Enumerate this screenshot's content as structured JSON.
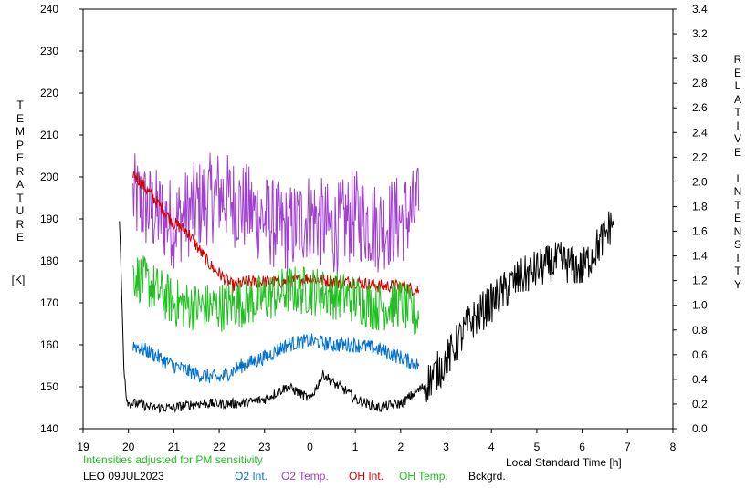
{
  "chart_data": {
    "type": "line",
    "left_axis": {
      "label": "TEMPERATURE",
      "unit": "[K]",
      "range": [
        140,
        240
      ],
      "ticks": [
        "140",
        "150",
        "160",
        "170",
        "180",
        "190",
        "200",
        "210",
        "220",
        "230",
        "240"
      ]
    },
    "right_axis": {
      "label": "RELATIVE INTENSITY",
      "range": [
        0.0,
        3.4
      ],
      "ticks": [
        "0.0",
        "0.2",
        "0.4",
        "0.6",
        "0.8",
        "1.0",
        "1.2",
        "1.4",
        "1.6",
        "1.8",
        "2.0",
        "2.2",
        "2.4",
        "2.6",
        "2.8",
        "3.0",
        "3.2",
        "3.4"
      ]
    },
    "x_axis": {
      "label": "Local Standard Time [h]",
      "ticks": [
        "19",
        "20",
        "21",
        "22",
        "23",
        "0",
        "1",
        "2",
        "3",
        "4",
        "5",
        "6",
        "7",
        "8"
      ]
    },
    "note": "Intensities adjusted for PM sensitivity",
    "station": "LEO 09JUL2023",
    "legend": [
      {
        "name": "O2 Int.",
        "color": "#0070d0"
      },
      {
        "name": "O2 Temp.",
        "color": "#a040d0"
      },
      {
        "name": "OH Int.",
        "color": "#d00000"
      },
      {
        "name": "OH Temp.",
        "color": "#20c020"
      },
      {
        "name": "Bckgrd.",
        "color": "#000000"
      }
    ],
    "series": [
      {
        "name": "O2 Temp.",
        "axis": "left",
        "x": [
          20.1,
          20.5,
          21.0,
          21.5,
          22.0,
          22.5,
          23.0,
          23.5,
          24.0,
          24.5,
          25.0,
          25.5,
          26.0,
          26.4
        ],
        "y": [
          195,
          192,
          189,
          193,
          196,
          193,
          190,
          187,
          191,
          187,
          191,
          188,
          190,
          192
        ]
      },
      {
        "name": "OH Int.",
        "axis": "left",
        "x": [
          20.1,
          20.4,
          20.7,
          21.0,
          21.3,
          21.6,
          21.8,
          22.0,
          22.3,
          22.6,
          23.0,
          23.5,
          24.0,
          24.5,
          25.0,
          25.5,
          26.0,
          26.4
        ],
        "y": [
          201,
          197,
          193,
          189,
          187,
          182,
          179,
          177,
          174,
          175,
          175,
          175,
          176,
          175,
          175,
          174,
          174,
          173
        ]
      },
      {
        "name": "OH Temp.",
        "axis": "left",
        "x": [
          20.1,
          20.5,
          21.0,
          21.5,
          22.0,
          22.5,
          23.0,
          23.5,
          24.0,
          24.5,
          25.0,
          25.5,
          26.0,
          26.4
        ],
        "y": [
          177,
          174,
          170,
          169,
          169,
          170,
          171,
          173,
          173,
          172,
          171,
          169,
          170,
          166
        ]
      },
      {
        "name": "O2 Int.",
        "axis": "left",
        "x": [
          20.1,
          20.5,
          21.0,
          21.5,
          22.0,
          22.5,
          23.0,
          23.5,
          24.0,
          24.5,
          25.0,
          25.5,
          26.0,
          26.4
        ],
        "y": [
          160,
          158,
          155,
          153,
          152,
          155,
          157,
          160,
          161,
          160,
          160,
          159,
          157,
          155
        ]
      },
      {
        "name": "Bckgrd.",
        "axis": "left",
        "x": [
          19.8,
          19.9,
          19.95,
          20.0,
          20.2,
          20.5,
          21.0,
          21.5,
          22.0,
          22.5,
          23.0,
          23.5,
          23.7,
          24.0,
          24.3,
          24.5,
          24.8,
          25.0,
          25.5,
          26.0,
          26.5,
          27.0,
          27.5,
          28.0,
          28.5,
          29.0,
          29.5,
          30.0,
          30.5,
          30.7
        ],
        "y": [
          190,
          155,
          148,
          146,
          146,
          145,
          145,
          146,
          146,
          146,
          147,
          150,
          149,
          147,
          153,
          151,
          149,
          147,
          145,
          146,
          150,
          156,
          165,
          170,
          175,
          178,
          180,
          178,
          186,
          190
        ]
      }
    ]
  }
}
